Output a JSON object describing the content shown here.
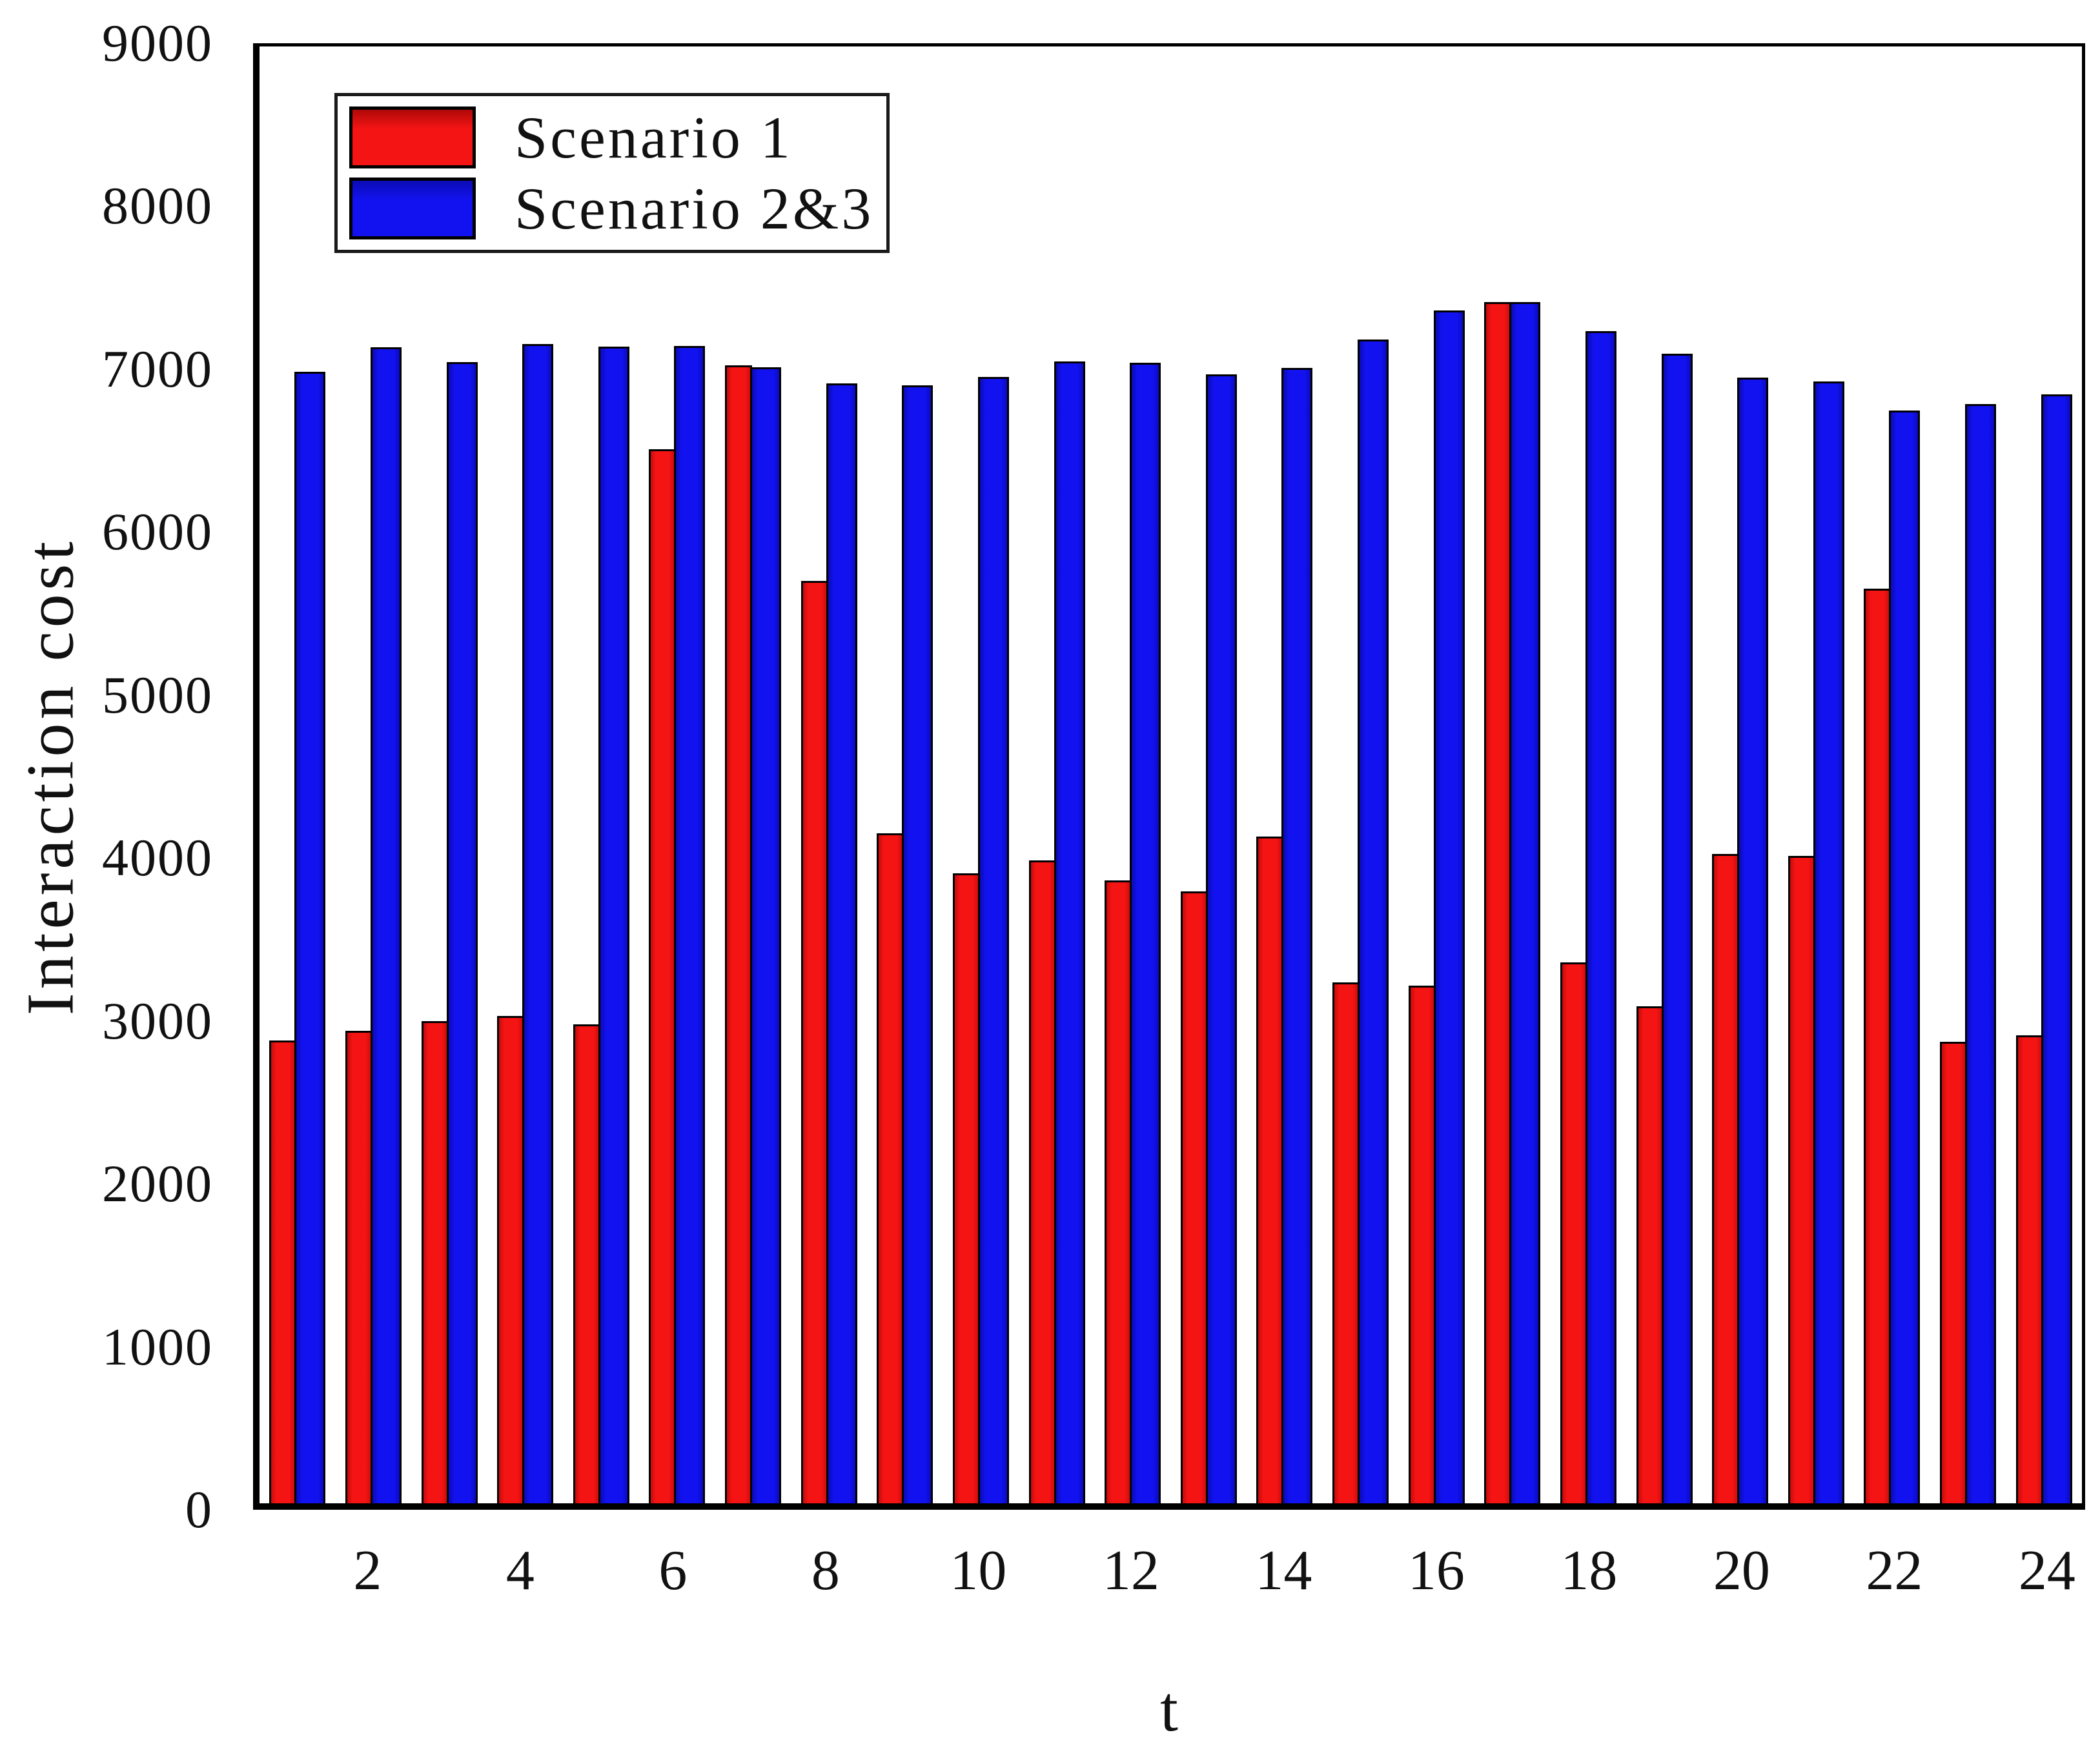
{
  "figure": {
    "ylabel": "Interaction cost",
    "xlabel": "t"
  },
  "legend": {
    "items": [
      {
        "label": "Scenario 1",
        "color": "#f51414"
      },
      {
        "label": "Scenario 2&3",
        "color": "#1212f0"
      }
    ]
  },
  "chart_data": {
    "type": "bar",
    "title": "",
    "xlabel": "t",
    "ylabel": "Interaction cost",
    "categories": [
      1,
      2,
      3,
      4,
      5,
      6,
      7,
      8,
      9,
      10,
      11,
      12,
      13,
      14,
      15,
      16,
      17,
      18,
      19,
      20,
      21,
      22,
      23,
      24
    ],
    "series": [
      {
        "name": "Scenario 1",
        "color": "#f51414",
        "values": [
          2860,
          2920,
          2980,
          3010,
          2960,
          6510,
          7030,
          5700,
          4140,
          3890,
          3970,
          3850,
          3780,
          4120,
          3220,
          3200,
          7420,
          3340,
          3070,
          4010,
          4000,
          5650,
          2850,
          2890
        ]
      },
      {
        "name": "Scenario 2&3",
        "color": "#1212f0",
        "values": [
          6990,
          7140,
          7050,
          7160,
          7145,
          7150,
          7020,
          6920,
          6905,
          6960,
          7055,
          7045,
          6975,
          7015,
          7190,
          7370,
          7420,
          7240,
          7100,
          6955,
          6930,
          6750,
          6790,
          6850
        ]
      }
    ],
    "ylim": [
      0,
      9000
    ],
    "yticks": [
      0,
      1000,
      2000,
      3000,
      4000,
      5000,
      6000,
      7000,
      8000,
      9000
    ],
    "xticks": [
      2,
      4,
      6,
      8,
      10,
      12,
      14,
      16,
      18,
      20,
      22,
      24
    ],
    "grid": false,
    "legend_position": "top-left"
  }
}
